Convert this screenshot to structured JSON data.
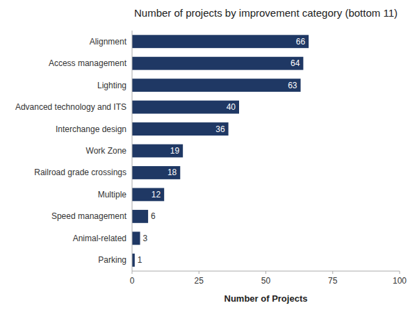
{
  "chart_data": {
    "type": "bar",
    "orientation": "horizontal",
    "title": "Number of projects by improvement category (bottom 11)",
    "categories": [
      "Parking",
      "Animal-related",
      "Speed management",
      "Multiple",
      "Railroad grade crossings",
      "Work Zone",
      "Interchange design",
      "Advanced technology and ITS",
      "Lighting",
      "Access management",
      "Alignment"
    ],
    "values": [
      1,
      3,
      6,
      12,
      18,
      19,
      36,
      40,
      63,
      64,
      66
    ],
    "color": "#1F3864",
    "xlabel": "Number of Projects",
    "xlim": [
      0,
      100
    ],
    "xticks": [
      0,
      25,
      50,
      75,
      100
    ],
    "data_labels": true,
    "grid": false
  }
}
